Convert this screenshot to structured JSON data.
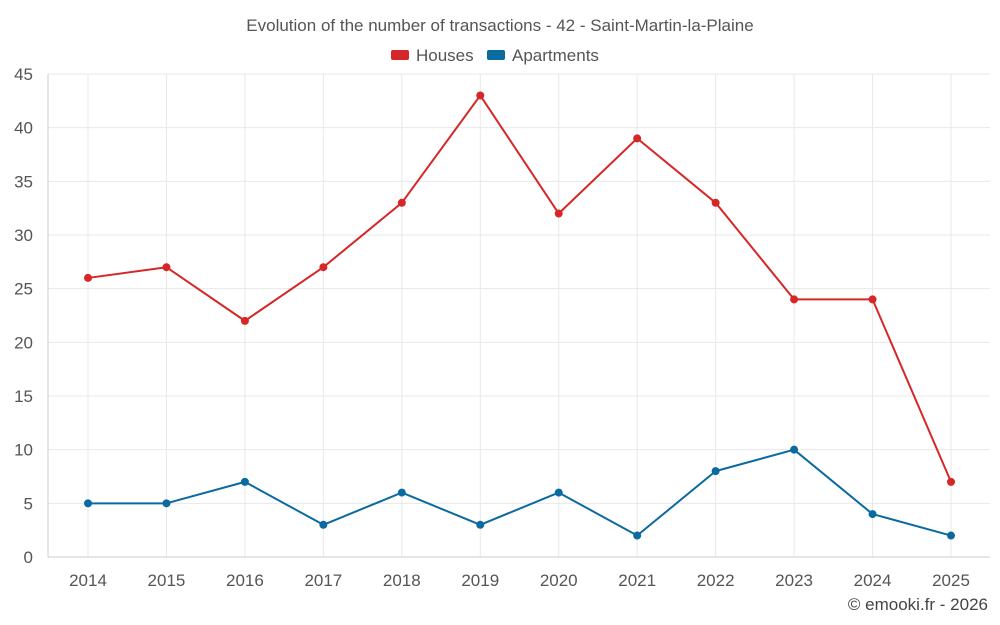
{
  "chart_data": {
    "type": "line",
    "title": "Evolution of the number of transactions - 42 - Saint-Martin-la-Plaine",
    "categories": [
      "2014",
      "2015",
      "2016",
      "2017",
      "2018",
      "2019",
      "2020",
      "2021",
      "2022",
      "2023",
      "2024",
      "2025"
    ],
    "series": [
      {
        "name": "Houses",
        "color": "#d62728",
        "values": [
          26,
          27,
          22,
          27,
          33,
          43,
          32,
          39,
          33,
          24,
          24,
          7
        ]
      },
      {
        "name": "Apartments",
        "color": "#0b6aa0",
        "values": [
          5,
          5,
          7,
          3,
          6,
          3,
          6,
          2,
          8,
          10,
          4,
          2
        ]
      }
    ],
    "ylim": [
      0,
      45
    ],
    "yticks": [
      "0",
      "5",
      "10",
      "15",
      "20",
      "25",
      "30",
      "35",
      "40",
      "45"
    ],
    "xlabel": "",
    "ylabel": "",
    "grid": true,
    "legend_position": "top-center"
  },
  "footer": {
    "copyright": "© emooki.fr - 2026"
  }
}
